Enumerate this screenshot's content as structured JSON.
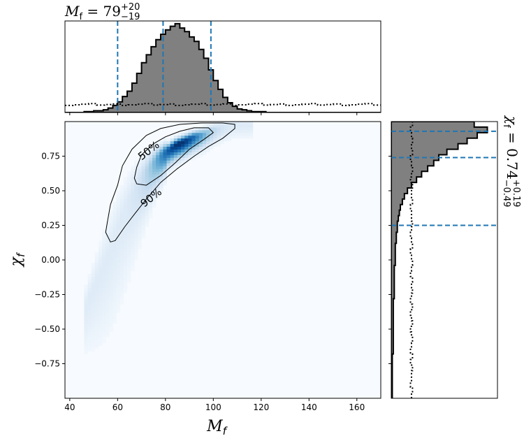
{
  "chart_data": [
    {
      "type": "heatmap",
      "panel": "joint",
      "xlabel": "M",
      "xlabel_sub": "f",
      "ylabel": "χ",
      "ylabel_sub": "f",
      "xlim": [
        38,
        170
      ],
      "ylim": [
        -1,
        1
      ],
      "xticks": [
        40,
        60,
        80,
        100,
        120,
        140,
        160
      ],
      "yticks": [
        -0.75,
        -0.5,
        -0.25,
        0.0,
        0.25,
        0.5,
        0.75
      ],
      "ytick_labels": [
        "−0.75",
        "−0.50",
        "−0.25",
        "0.00",
        "0.25",
        "0.50",
        "0.75"
      ],
      "colormap": [
        "#f7fbff",
        "#deebf7",
        "#c6dbef",
        "#9ecae1",
        "#6baed6",
        "#4292c6",
        "#2171b5",
        "#08519c",
        "#08306b"
      ],
      "density_ridge": [
        {
          "x": 56,
          "y": 0.04
        },
        {
          "x": 60,
          "y": 0.22
        },
        {
          "x": 64,
          "y": 0.38
        },
        {
          "x": 68,
          "y": 0.52
        },
        {
          "x": 72,
          "y": 0.63
        },
        {
          "x": 76,
          "y": 0.72
        },
        {
          "x": 80,
          "y": 0.78
        },
        {
          "x": 84,
          "y": 0.83
        },
        {
          "x": 88,
          "y": 0.86
        },
        {
          "x": 92,
          "y": 0.89
        },
        {
          "x": 96,
          "y": 0.91
        },
        {
          "x": 100,
          "y": 0.94
        },
        {
          "x": 104,
          "y": 0.96
        },
        {
          "x": 108,
          "y": 0.98
        }
      ],
      "contours": [
        {
          "label": "50%",
          "label_at": {
            "x": 73,
            "y": 0.79
          },
          "points": [
            [
              68,
              0.55
            ],
            [
              72,
              0.54
            ],
            [
              78,
              0.61
            ],
            [
              84,
              0.7
            ],
            [
              90,
              0.8
            ],
            [
              96,
              0.87
            ],
            [
              100,
              0.92
            ],
            [
              98,
              0.955
            ],
            [
              92,
              0.955
            ],
            [
              86,
              0.93
            ],
            [
              80,
              0.89
            ],
            [
              75,
              0.84
            ],
            [
              70,
              0.76
            ],
            [
              68,
              0.67
            ],
            [
              67,
              0.59
            ]
          ]
        },
        {
          "label": "90%",
          "label_at": {
            "x": 74,
            "y": 0.45
          },
          "points": [
            [
              57,
              0.13
            ],
            [
              59,
              0.14
            ],
            [
              63,
              0.24
            ],
            [
              67,
              0.33
            ],
            [
              72,
              0.44
            ],
            [
              78,
              0.56
            ],
            [
              85,
              0.66
            ],
            [
              92,
              0.75
            ],
            [
              98,
              0.82
            ],
            [
              104,
              0.88
            ],
            [
              109,
              0.95
            ],
            [
              109,
              0.98
            ],
            [
              104,
              0.99
            ],
            [
              95,
              0.99
            ],
            [
              86,
              0.98
            ],
            [
              78,
              0.95
            ],
            [
              72,
              0.9
            ],
            [
              66,
              0.8
            ],
            [
              62,
              0.68
            ],
            [
              60,
              0.54
            ],
            [
              57,
              0.4
            ],
            [
              56,
              0.3
            ],
            [
              55,
              0.2
            ]
          ]
        }
      ]
    },
    {
      "type": "bar",
      "panel": "marginal-top",
      "title": "M",
      "title_sub": "f",
      "title_value": " = 79",
      "title_upper": "+20",
      "title_lower": "−19",
      "bin_width": 2,
      "bin_start": 38,
      "values": [
        0,
        0,
        0,
        0,
        1,
        1,
        2,
        2,
        3,
        5,
        8,
        12,
        18,
        24,
        33,
        44,
        56,
        65,
        74,
        82,
        88,
        93,
        97,
        100,
        95,
        91,
        85,
        80,
        71,
        61,
        48,
        36,
        26,
        17,
        11,
        7,
        4,
        3,
        2,
        1,
        1,
        1,
        0,
        0,
        0,
        0,
        0,
        0,
        0,
        0,
        0,
        0,
        0,
        0,
        0,
        0,
        0,
        0,
        0,
        0,
        0,
        0,
        0,
        0,
        0,
        0
      ],
      "prior_level": 9,
      "ylim": [
        0,
        103
      ],
      "quantiles": [
        60,
        79,
        99
      ],
      "line_color": "#1f77b4",
      "fill_color": "#808080"
    },
    {
      "type": "bar",
      "panel": "marginal-right",
      "title": "χ",
      "title_sub": "f",
      "title_value": " = 0.74",
      "title_upper": "+0.19",
      "title_lower": "−0.49",
      "bin_start": -1,
      "bin_width": 0.04,
      "values": [
        1,
        1,
        1,
        1,
        1,
        1,
        1,
        1,
        2,
        2,
        2,
        2,
        2,
        2,
        2,
        2,
        2,
        2,
        3,
        3,
        3,
        3,
        3,
        3,
        4,
        4,
        4,
        4,
        5,
        5,
        6,
        6,
        7,
        8,
        9,
        11,
        13,
        16,
        20,
        25,
        30,
        36,
        42,
        47,
        55,
        66,
        75,
        85,
        95,
        82
      ],
      "prior_values": [
        20,
        21,
        19,
        20,
        20,
        21,
        19,
        21,
        19,
        20,
        21,
        20,
        19,
        21,
        20,
        19,
        21,
        19,
        20,
        21,
        20,
        21,
        19,
        20,
        21,
        20,
        19,
        21,
        20,
        19,
        20,
        21,
        20,
        20,
        19,
        21,
        20,
        20,
        21,
        19,
        20,
        21,
        20,
        19,
        21,
        20,
        21,
        20,
        19,
        21
      ],
      "xlim": [
        0,
        105
      ],
      "quantiles": [
        0.25,
        0.74,
        0.93
      ],
      "line_color": "#1f77b4",
      "fill_color": "#808080"
    }
  ]
}
